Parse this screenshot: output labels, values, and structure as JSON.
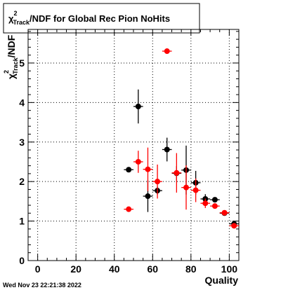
{
  "title": {
    "prefix": "χ",
    "sup": "2",
    "sub": "Track",
    "rest": "/NDF for Global Rec Pion NoHits"
  },
  "timestamp": "Wed Nov 23 22:21:38 2022",
  "chart_data": {
    "type": "scatter",
    "xlabel": "Quality",
    "ylabel": {
      "prefix": "χ",
      "sup": "2",
      "sub": "Track",
      "rest": "/NDF"
    },
    "xlim": [
      -5,
      105
    ],
    "ylim": [
      0,
      5.85
    ],
    "x_ticks": [
      "0",
      "20",
      "40",
      "60",
      "80",
      "100"
    ],
    "x_tick_values": [
      0,
      20,
      40,
      60,
      80,
      100
    ],
    "y_ticks": [
      "0",
      "1",
      "2",
      "3",
      "4",
      "5"
    ],
    "y_tick_values": [
      0,
      1,
      2,
      3,
      4,
      5
    ],
    "grid": true,
    "colors": {
      "black_series": "#000000",
      "red_series": "#ff0000"
    },
    "series": [
      {
        "color": "#000000",
        "points": [
          {
            "x": 47.5,
            "y": 2.3,
            "xerr": 2.5,
            "yerr": 0.03
          },
          {
            "x": 52.5,
            "y": 3.9,
            "xerr": 2.5,
            "yerr": 0.43
          },
          {
            "x": 57.5,
            "y": 1.63,
            "xerr": 2.5,
            "yerr": 0.4
          },
          {
            "x": 62.5,
            "y": 1.77,
            "xerr": 2.5,
            "yerr": 0.1
          },
          {
            "x": 67.5,
            "y": 2.81,
            "xerr": 2.5,
            "yerr": 0.3
          },
          {
            "x": 72.5,
            "y": 2.21,
            "xerr": 2.5,
            "yerr": 0.18
          },
          {
            "x": 77.5,
            "y": 2.29,
            "xerr": 2.5,
            "yerr": 0.62
          },
          {
            "x": 82.5,
            "y": 1.97,
            "xerr": 2.5,
            "yerr": 0.3
          },
          {
            "x": 87.5,
            "y": 1.56,
            "xerr": 2.5,
            "yerr": 0.12
          },
          {
            "x": 92.5,
            "y": 1.54,
            "xerr": 2.5,
            "yerr": 0.05
          },
          {
            "x": 97.5,
            "y": 1.2,
            "xerr": 2.5,
            "yerr": 0.03
          },
          {
            "x": 102.5,
            "y": 0.93,
            "xerr": 2.5,
            "yerr": 0.03
          }
        ]
      },
      {
        "color": "#ff0000",
        "points": [
          {
            "x": 47.5,
            "y": 1.3,
            "xerr": 2.5,
            "yerr": 0.03
          },
          {
            "x": 52.5,
            "y": 2.5,
            "xerr": 2.5,
            "yerr": 0.28
          },
          {
            "x": 57.5,
            "y": 2.31,
            "xerr": 2.5,
            "yerr": 0.55
          },
          {
            "x": 62.5,
            "y": 2.0,
            "xerr": 2.5,
            "yerr": 0.43
          },
          {
            "x": 67.5,
            "y": 5.3,
            "xerr": 2.5,
            "yerr": 0.03
          },
          {
            "x": 72.5,
            "y": 2.22,
            "xerr": 2.5,
            "yerr": 0.5
          },
          {
            "x": 77.5,
            "y": 1.85,
            "xerr": 2.5,
            "yerr": 0.56
          },
          {
            "x": 82.5,
            "y": 1.78,
            "xerr": 2.5,
            "yerr": 0.3
          },
          {
            "x": 87.5,
            "y": 1.45,
            "xerr": 2.5,
            "yerr": 0.12
          },
          {
            "x": 92.5,
            "y": 1.38,
            "xerr": 2.5,
            "yerr": 0.04
          },
          {
            "x": 97.5,
            "y": 1.21,
            "xerr": 2.5,
            "yerr": 0.03
          },
          {
            "x": 102.5,
            "y": 0.88,
            "xerr": 2.5,
            "yerr": 0.03
          }
        ]
      }
    ]
  }
}
